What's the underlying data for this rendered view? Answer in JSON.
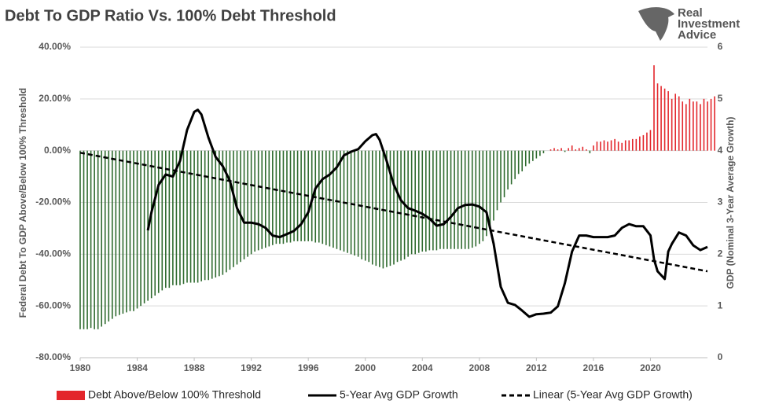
{
  "chart_data": {
    "type": "bar-line",
    "title": "Debt To GDP Ratio Vs. 100% Debt Threshold",
    "source_logo": [
      "Real",
      "Investment",
      "Advice"
    ],
    "ylabel": "Federal Debt To GDP Above/Below 100% Threshold",
    "y2label": "GDP (Nominal 3-Year Average Growth)",
    "xlim": [
      1980,
      2024
    ],
    "xticks": [
      1980,
      1984,
      1988,
      1992,
      1996,
      2000,
      2004,
      2008,
      2012,
      2016,
      2020
    ],
    "ylim": [
      -80,
      40
    ],
    "yticks": [
      {
        "value": -80,
        "label": "-80.00%"
      },
      {
        "value": -60,
        "label": "-60.00%"
      },
      {
        "value": -40,
        "label": "-40.00%"
      },
      {
        "value": -20,
        "label": "-20.00%"
      },
      {
        "value": 0,
        "label": "0.00%"
      },
      {
        "value": 20,
        "label": "20.00%"
      },
      {
        "value": 40,
        "label": "40.00%"
      }
    ],
    "y2lim": [
      0,
      6
    ],
    "y2ticks": [
      0,
      1,
      2,
      3,
      4,
      5,
      6
    ],
    "grid": true,
    "legend": "bottom",
    "series": [
      {
        "name": "Debt Above/Below 100%   Threshold",
        "kind": "bar",
        "color": "#e3262b",
        "negative_color": "#2f6b2f",
        "x": [
          1980,
          1980.25,
          1980.5,
          1980.75,
          1981,
          1981.25,
          1981.5,
          1981.75,
          1982,
          1982.25,
          1982.5,
          1982.75,
          1983,
          1983.25,
          1983.5,
          1983.75,
          1984,
          1984.25,
          1984.5,
          1984.75,
          1985,
          1985.25,
          1985.5,
          1985.75,
          1986,
          1986.25,
          1986.5,
          1986.75,
          1987,
          1987.25,
          1987.5,
          1987.75,
          1988,
          1988.25,
          1988.5,
          1988.75,
          1989,
          1989.25,
          1989.5,
          1989.75,
          1990,
          1990.25,
          1990.5,
          1990.75,
          1991,
          1991.25,
          1991.5,
          1991.75,
          1992,
          1992.25,
          1992.5,
          1992.75,
          1993,
          1993.25,
          1993.5,
          1993.75,
          1994,
          1994.25,
          1994.5,
          1994.75,
          1995,
          1995.25,
          1995.5,
          1995.75,
          1996,
          1996.25,
          1996.5,
          1996.75,
          1997,
          1997.25,
          1997.5,
          1997.75,
          1998,
          1998.25,
          1998.5,
          1998.75,
          1999,
          1999.25,
          1999.5,
          1999.75,
          2000,
          2000.25,
          2000.5,
          2000.75,
          2001,
          2001.25,
          2001.5,
          2001.75,
          2002,
          2002.25,
          2002.5,
          2002.75,
          2003,
          2003.25,
          2003.5,
          2003.75,
          2004,
          2004.25,
          2004.5,
          2004.75,
          2005,
          2005.25,
          2005.5,
          2005.75,
          2006,
          2006.25,
          2006.5,
          2006.75,
          2007,
          2007.25,
          2007.5,
          2007.75,
          2008,
          2008.25,
          2008.5,
          2008.75,
          2009,
          2009.25,
          2009.5,
          2009.75,
          2010,
          2010.25,
          2010.5,
          2010.75,
          2011,
          2011.25,
          2011.5,
          2011.75,
          2012,
          2012.25,
          2012.5,
          2012.75,
          2013,
          2013.25,
          2013.5,
          2013.75,
          2014,
          2014.25,
          2014.5,
          2014.75,
          2015,
          2015.25,
          2015.5,
          2015.75,
          2016,
          2016.25,
          2016.5,
          2016.75,
          2017,
          2017.25,
          2017.5,
          2017.75,
          2018,
          2018.25,
          2018.5,
          2018.75,
          2019,
          2019.25,
          2019.5,
          2019.75,
          2020,
          2020.25,
          2020.5,
          2020.75,
          2021,
          2021.25,
          2021.5,
          2021.75,
          2022,
          2022.25,
          2022.5,
          2022.75,
          2023,
          2023.25,
          2023.5,
          2023.75,
          2024,
          2024.25,
          2024.5
        ],
        "values": [
          -69,
          -69,
          -69,
          -68.5,
          -69,
          -69,
          -68,
          -67,
          -66,
          -65,
          -64,
          -63.5,
          -63,
          -62.5,
          -62,
          -62,
          -61,
          -60,
          -59,
          -58,
          -57,
          -56,
          -55,
          -54,
          -53,
          -53,
          -52,
          -52,
          -52,
          -51.5,
          -51,
          -51,
          -51,
          -51,
          -50.5,
          -50,
          -50,
          -49.5,
          -49,
          -48.5,
          -48,
          -47,
          -46,
          -45,
          -44,
          -43,
          -42,
          -41,
          -40,
          -39,
          -38.5,
          -38,
          -37.5,
          -37,
          -36.5,
          -36,
          -36,
          -36,
          -35.5,
          -35.5,
          -35,
          -35,
          -35,
          -35,
          -35,
          -35,
          -35.5,
          -35.5,
          -36,
          -36.5,
          -37,
          -37.5,
          -38,
          -38.5,
          -39,
          -39.5,
          -40,
          -40.5,
          -41,
          -42,
          -42.5,
          -43,
          -44,
          -44.5,
          -45,
          -45.5,
          -45,
          -44.5,
          -44,
          -43,
          -42.5,
          -42,
          -41,
          -40,
          -40,
          -39.5,
          -39,
          -39,
          -38.5,
          -38.5,
          -38.5,
          -38,
          -38,
          -38,
          -38,
          -38,
          -38,
          -38,
          -38,
          -38,
          -37.5,
          -37,
          -36,
          -35,
          -33,
          -30,
          -27,
          -23,
          -20,
          -18,
          -15,
          -13,
          -11,
          -9,
          -8,
          -6,
          -5,
          -4,
          -3,
          -2,
          -1,
          0,
          0.5,
          1,
          0.5,
          1,
          -0.5,
          1,
          2,
          0.5,
          1,
          1.5,
          0.5,
          -1,
          2,
          3.5,
          3.5,
          4,
          3.5,
          4,
          4.5,
          3.5,
          3,
          4,
          4,
          4.5,
          4.5,
          5.5,
          6,
          7,
          8,
          33,
          26,
          25,
          24,
          23,
          20,
          22,
          21,
          19,
          18,
          20,
          19,
          19,
          18,
          20,
          19,
          20,
          21
        ]
      },
      {
        "name": "5-Year Avg GDP Growth",
        "kind": "line",
        "axis": "y2",
        "color": "#000000",
        "x": [
          1984.75,
          1985,
          1985.5,
          1986,
          1986.5,
          1987,
          1987.5,
          1988,
          1988.25,
          1988.5,
          1989,
          1989.5,
          1990,
          1990.5,
          1991,
          1991.5,
          1992,
          1992.5,
          1993,
          1993.5,
          1994,
          1994.5,
          1995,
          1995.5,
          1996,
          1996.5,
          1997,
          1997.5,
          1998,
          1998.5,
          1999,
          1999.5,
          2000,
          2000.5,
          2000.75,
          2001,
          2001.5,
          2002,
          2002.5,
          2003,
          2003.5,
          2004,
          2004.5,
          2005,
          2005.5,
          2006,
          2006.5,
          2007,
          2007.5,
          2008,
          2008.5,
          2009,
          2009.5,
          2010,
          2010.5,
          2011,
          2011.5,
          2012,
          2012.5,
          2013,
          2013.5,
          2014,
          2014.5,
          2015,
          2015.5,
          2016,
          2016.5,
          2017,
          2017.5,
          2018,
          2018.5,
          2019,
          2019.5,
          2020,
          2020.25,
          2020.5,
          2021,
          2021.25,
          2021.5,
          2022,
          2022.5,
          2023,
          2023.5,
          2024
        ],
        "values": [
          2.46,
          2.81,
          3.34,
          3.54,
          3.5,
          3.8,
          4.4,
          4.75,
          4.79,
          4.7,
          4.25,
          3.88,
          3.7,
          3.42,
          2.89,
          2.61,
          2.61,
          2.58,
          2.51,
          2.36,
          2.33,
          2.39,
          2.45,
          2.58,
          2.81,
          3.27,
          3.45,
          3.54,
          3.68,
          3.91,
          3.98,
          4.03,
          4.18,
          4.3,
          4.32,
          4.21,
          3.8,
          3.34,
          3.04,
          2.89,
          2.84,
          2.78,
          2.69,
          2.55,
          2.58,
          2.72,
          2.89,
          2.95,
          2.96,
          2.92,
          2.81,
          2.2,
          1.37,
          1.06,
          1.02,
          0.91,
          0.79,
          0.84,
          0.85,
          0.87,
          0.99,
          1.44,
          2.05,
          2.36,
          2.36,
          2.33,
          2.33,
          2.33,
          2.36,
          2.51,
          2.58,
          2.54,
          2.54,
          2.36,
          1.9,
          1.67,
          1.52,
          2.05,
          2.2,
          2.42,
          2.36,
          2.17,
          2.08,
          2.14
        ]
      },
      {
        "name": "Linear (5-Year Avg GDP Growth)",
        "kind": "line",
        "axis": "y2",
        "dash": true,
        "color": "#000000",
        "x": [
          1980,
          2024
        ],
        "values": [
          3.96,
          1.67
        ]
      }
    ]
  }
}
